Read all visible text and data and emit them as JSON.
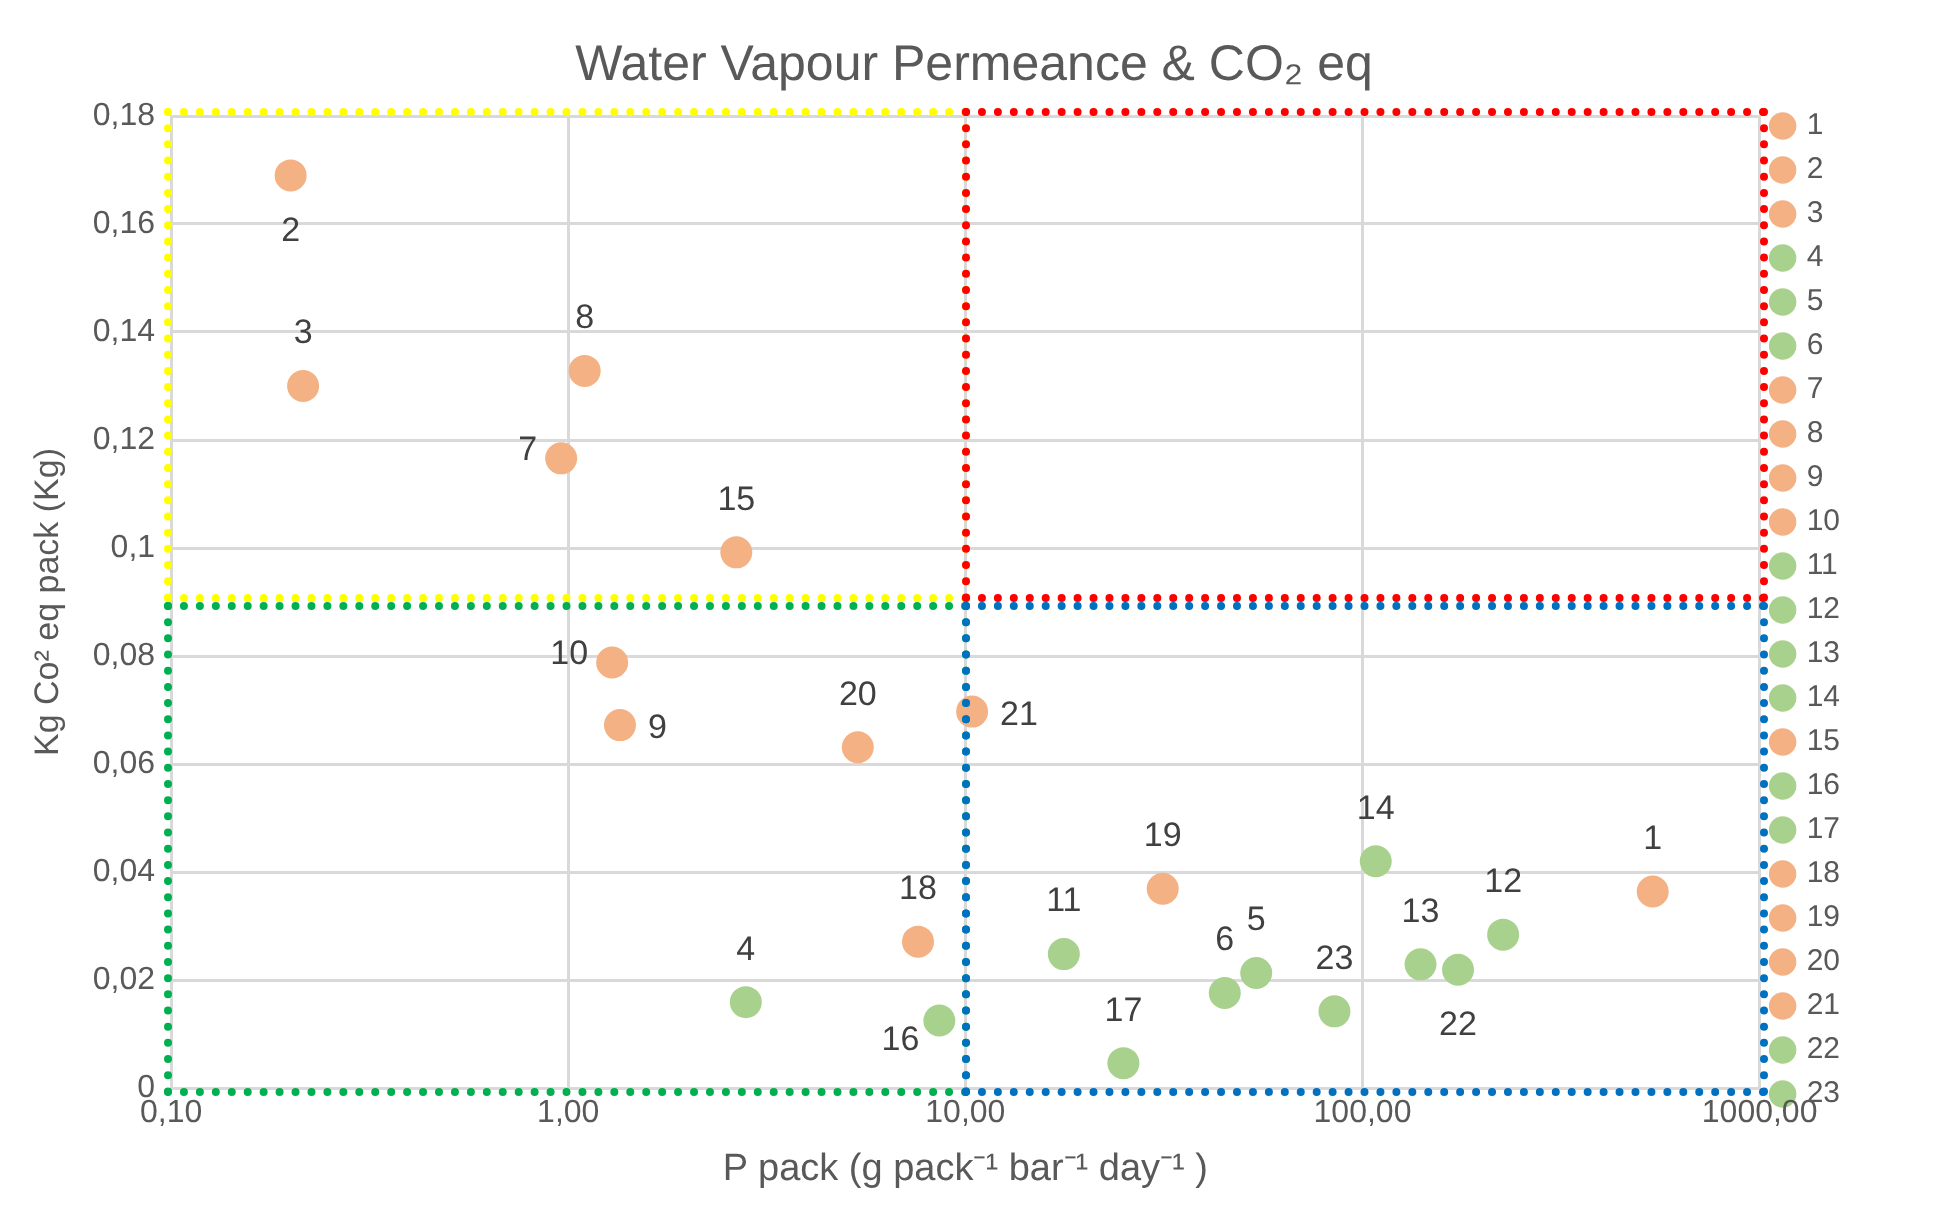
{
  "chart_data": {
    "type": "scatter",
    "title": "Water Vapour Permeance & CO₂ eq",
    "xlabel": "P pack (g pack⁻¹ bar⁻¹ day⁻¹ )",
    "ylabel": "Kg Co² eq pack (Kg)",
    "log": "x",
    "grid": true,
    "legend": "right",
    "marker": "circle",
    "xlim": [
      0.1,
      1000
    ],
    "xticks": [
      {
        "value": 0.1,
        "label": "0,10"
      },
      {
        "value": 1,
        "label": "1,00"
      },
      {
        "value": 10,
        "label": "10,00"
      },
      {
        "value": 100,
        "label": "100,00"
      },
      {
        "value": 1000,
        "label": "1000,00"
      }
    ],
    "ylim": [
      0,
      0.18
    ],
    "yticks": [
      {
        "value": 0,
        "label": "0"
      },
      {
        "value": 0.02,
        "label": "0,02"
      },
      {
        "value": 0.04,
        "label": "0,04"
      },
      {
        "value": 0.06,
        "label": "0,06"
      },
      {
        "value": 0.08,
        "label": "0,08"
      },
      {
        "value": 0.1,
        "label": "0,1"
      },
      {
        "value": 0.12,
        "label": "0,12"
      },
      {
        "value": 0.14,
        "label": "0,14"
      },
      {
        "value": 0.16,
        "label": "0,16"
      },
      {
        "value": 0.18,
        "label": "0,18"
      }
    ],
    "series": [
      {
        "name": "1",
        "color": "#f4b183",
        "x": [
          538
        ],
        "values": [
          0.0364
        ]
      },
      {
        "name": "2",
        "color": "#f4b183",
        "x": [
          0.2
        ],
        "values": [
          0.169
        ]
      },
      {
        "name": "3",
        "color": "#f4b183",
        "x": [
          0.215
        ],
        "values": [
          0.13
        ]
      },
      {
        "name": "4",
        "color": "#a9d18e",
        "x": [
          2.8
        ],
        "values": [
          0.0159
        ]
      },
      {
        "name": "5",
        "color": "#a9d18e",
        "x": [
          54
        ],
        "values": [
          0.0213
        ]
      },
      {
        "name": "6",
        "color": "#a9d18e",
        "x": [
          45
        ],
        "values": [
          0.0176
        ]
      },
      {
        "name": "7",
        "color": "#f4b183",
        "x": [
          0.96
        ],
        "values": [
          0.1166
        ]
      },
      {
        "name": "8",
        "color": "#f4b183",
        "x": [
          1.1
        ],
        "values": [
          0.1328
        ]
      },
      {
        "name": "9",
        "color": "#f4b183",
        "x": [
          1.35
        ],
        "values": [
          0.0672
        ]
      },
      {
        "name": "10",
        "color": "#f4b183",
        "x": [
          1.29
        ],
        "values": [
          0.0788
        ]
      },
      {
        "name": "11",
        "color": "#a9d18e",
        "x": [
          17.7
        ],
        "values": [
          0.0248
        ]
      },
      {
        "name": "12",
        "color": "#a9d18e",
        "x": [
          226
        ],
        "values": [
          0.0284
        ]
      },
      {
        "name": "13",
        "color": "#a9d18e",
        "x": [
          140
        ],
        "values": [
          0.0229
        ]
      },
      {
        "name": "14",
        "color": "#a9d18e",
        "x": [
          108
        ],
        "values": [
          0.042
        ]
      },
      {
        "name": "15",
        "color": "#f4b183",
        "x": [
          2.65
        ],
        "values": [
          0.0992
        ]
      },
      {
        "name": "16",
        "color": "#a9d18e",
        "x": [
          8.6
        ],
        "values": [
          0.0125
        ]
      },
      {
        "name": "17",
        "color": "#a9d18e",
        "x": [
          25
        ],
        "values": [
          0.0046
        ]
      },
      {
        "name": "18",
        "color": "#f4b183",
        "x": [
          7.6
        ],
        "values": [
          0.0271
        ]
      },
      {
        "name": "19",
        "color": "#f4b183",
        "x": [
          31.4
        ],
        "values": [
          0.0369
        ]
      },
      {
        "name": "20",
        "color": "#f4b183",
        "x": [
          5.36
        ],
        "values": [
          0.0631
        ]
      },
      {
        "name": "21",
        "color": "#f4b183",
        "x": [
          10.4
        ],
        "values": [
          0.0697
        ]
      },
      {
        "name": "22",
        "color": "#a9d18e",
        "x": [
          174
        ],
        "values": [
          0.0219
        ]
      },
      {
        "name": "23",
        "color": "#a9d18e",
        "x": [
          85
        ],
        "values": [
          0.0142
        ]
      }
    ]
  }
}
